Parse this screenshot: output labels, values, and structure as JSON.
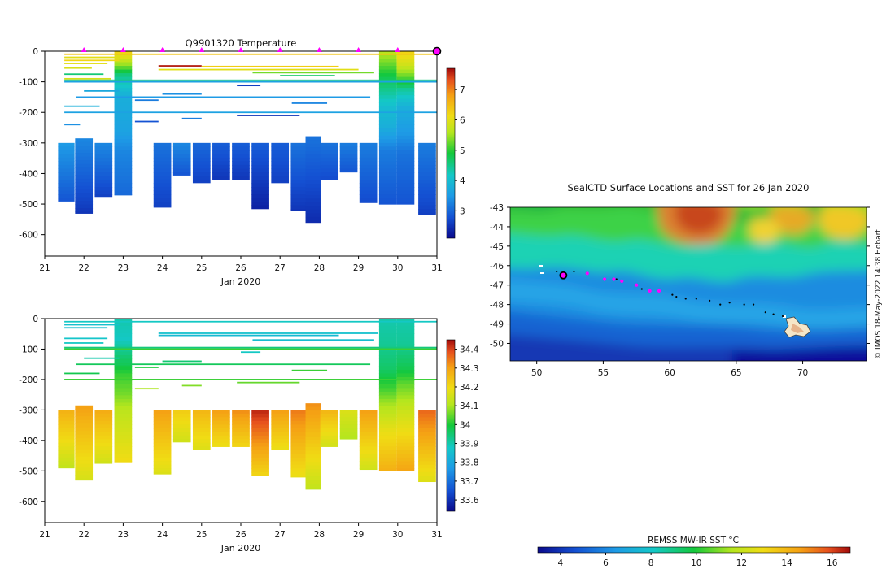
{
  "chart_data": [
    {
      "type": "heatmap",
      "name": "temperature-section",
      "title": "Q9901320  Temperature",
      "xlabel": "Jan 2020",
      "xlim": [
        21,
        31
      ],
      "xticks": [
        21,
        22,
        23,
        24,
        25,
        26,
        27,
        28,
        29,
        30,
        31
      ],
      "ylim": [
        -670,
        0
      ],
      "yticks": [
        0,
        -100,
        -200,
        -300,
        -400,
        -500,
        -600
      ],
      "colorbar": {
        "min": 2.1,
        "max": 7.7,
        "ticks": [
          3,
          4,
          5,
          6,
          7
        ]
      },
      "surface_markers": [
        22,
        23,
        24,
        25,
        26,
        27,
        28,
        29,
        30
      ],
      "last_marker": 31,
      "profiles": [
        {
          "day": 21.55,
          "w": 0.42,
          "top": -300,
          "bottom": -490,
          "lo": 2.8,
          "hi": 3.5
        },
        {
          "day": 22.0,
          "w": 0.45,
          "top": -285,
          "bottom": -530,
          "lo": 2.5,
          "hi": 3.3
        },
        {
          "day": 22.5,
          "w": 0.45,
          "top": -300,
          "bottom": -475,
          "lo": 2.6,
          "hi": 3.3
        },
        {
          "day": 24.0,
          "w": 0.45,
          "top": -300,
          "bottom": -510,
          "lo": 2.6,
          "hi": 3.1
        },
        {
          "day": 24.5,
          "w": 0.45,
          "top": -300,
          "bottom": -405,
          "lo": 2.8,
          "hi": 3.3
        },
        {
          "day": 25.0,
          "w": 0.45,
          "top": -300,
          "bottom": -430,
          "lo": 2.6,
          "hi": 3.0
        },
        {
          "day": 25.5,
          "w": 0.45,
          "top": -300,
          "bottom": -420,
          "lo": 2.5,
          "hi": 2.9
        },
        {
          "day": 26.0,
          "w": 0.45,
          "top": -300,
          "bottom": -420,
          "lo": 2.5,
          "hi": 2.9
        },
        {
          "day": 26.5,
          "w": 0.45,
          "top": -300,
          "bottom": -515,
          "lo": 2.3,
          "hi": 2.9
        },
        {
          "day": 27.0,
          "w": 0.45,
          "top": -300,
          "bottom": -430,
          "lo": 2.6,
          "hi": 2.9
        },
        {
          "day": 27.5,
          "w": 0.45,
          "top": -300,
          "bottom": -520,
          "lo": 2.5,
          "hi": 3.1
        },
        {
          "day": 27.85,
          "w": 0.4,
          "top": -278,
          "bottom": -560,
          "lo": 2.4,
          "hi": 3.1
        },
        {
          "day": 28.25,
          "w": 0.45,
          "top": -300,
          "bottom": -420,
          "lo": 2.7,
          "hi": 3.1
        },
        {
          "day": 28.75,
          "w": 0.45,
          "top": -300,
          "bottom": -395,
          "lo": 2.8,
          "hi": 3.2
        },
        {
          "day": 29.25,
          "w": 0.45,
          "top": -300,
          "bottom": -495,
          "lo": 2.7,
          "hi": 3.2
        },
        {
          "day": 30.75,
          "w": 0.45,
          "top": -300,
          "bottom": -535,
          "lo": 2.6,
          "hi": 3.2
        }
      ],
      "full_columns": [
        {
          "day": 23.0,
          "w": 0.45,
          "bottom": -470,
          "stops": [
            [
              0,
              6.2
            ],
            [
              -40,
              5.4
            ],
            [
              -70,
              4.6
            ],
            [
              -100,
              4.2
            ],
            [
              -140,
              3.8
            ],
            [
              -200,
              3.7
            ],
            [
              -260,
              3.6
            ],
            [
              -320,
              3.3
            ],
            [
              -470,
              3.0
            ]
          ]
        },
        {
          "day": 29.75,
          "w": 0.45,
          "bottom": -500,
          "stops": [
            [
              0,
              5.6
            ],
            [
              -40,
              5.2
            ],
            [
              -80,
              4.8
            ],
            [
              -130,
              4.4
            ],
            [
              -180,
              4.0
            ],
            [
              -240,
              3.8
            ],
            [
              -320,
              3.2
            ],
            [
              -500,
              2.8
            ]
          ]
        },
        {
          "day": 30.2,
          "w": 0.45,
          "bottom": -500,
          "stops": [
            [
              0,
              6.2
            ],
            [
              -40,
              5.8
            ],
            [
              -80,
              5.2
            ],
            [
              -120,
              4.4
            ],
            [
              -180,
              3.8
            ],
            [
              -260,
              3.5
            ],
            [
              -330,
              3.1
            ],
            [
              -500,
              2.8
            ]
          ]
        }
      ],
      "lines": [
        {
          "depth": -10,
          "x0": 21.5,
          "x1": 31.0,
          "v": 6.4
        },
        {
          "depth": -20,
          "x0": 21.5,
          "x1": 22.9,
          "v": 6.0
        },
        {
          "depth": -30,
          "x0": 21.5,
          "x1": 22.9,
          "v": 6.2
        },
        {
          "depth": -40,
          "x0": 21.5,
          "x1": 22.6,
          "v": 6.0
        },
        {
          "depth": -48,
          "x0": 23.9,
          "x1": 25.0,
          "v": 7.6
        },
        {
          "depth": -50,
          "x0": 25.0,
          "x1": 28.5,
          "v": 6.3
        },
        {
          "depth": -55,
          "x0": 21.5,
          "x1": 22.2,
          "v": 5.9
        },
        {
          "depth": -60,
          "x0": 23.9,
          "x1": 29.0,
          "v": 6.0
        },
        {
          "depth": -70,
          "x0": 26.3,
          "x1": 29.4,
          "v": 5.3
        },
        {
          "depth": -75,
          "x0": 21.5,
          "x1": 22.5,
          "v": 4.6
        },
        {
          "depth": -80,
          "x0": 27.0,
          "x1": 28.4,
          "v": 4.7
        },
        {
          "depth": -90,
          "x0": 21.5,
          "x1": 22.7,
          "v": 5.9
        },
        {
          "depth": -95,
          "x0": 21.5,
          "x1": 31.0,
          "v": 4.6
        },
        {
          "depth": -100,
          "x0": 21.5,
          "x1": 31.0,
          "v": 3.6
        },
        {
          "depth": -112,
          "x0": 25.9,
          "x1": 26.5,
          "v": 2.6
        },
        {
          "depth": -130,
          "x0": 22.0,
          "x1": 22.9,
          "v": 3.7
        },
        {
          "depth": -140,
          "x0": 24.0,
          "x1": 25.0,
          "v": 3.4
        },
        {
          "depth": -150,
          "x0": 21.8,
          "x1": 29.3,
          "v": 3.5
        },
        {
          "depth": -160,
          "x0": 23.3,
          "x1": 23.9,
          "v": 3.2
        },
        {
          "depth": -170,
          "x0": 27.3,
          "x1": 28.2,
          "v": 3.3
        },
        {
          "depth": -180,
          "x0": 21.5,
          "x1": 22.4,
          "v": 3.8
        },
        {
          "depth": -200,
          "x0": 21.5,
          "x1": 31.0,
          "v": 3.6
        },
        {
          "depth": -210,
          "x0": 25.9,
          "x1": 27.5,
          "v": 2.5
        },
        {
          "depth": -220,
          "x0": 24.5,
          "x1": 25.0,
          "v": 3.2
        },
        {
          "depth": -230,
          "x0": 23.3,
          "x1": 23.9,
          "v": 2.8
        },
        {
          "depth": -240,
          "x0": 21.5,
          "x1": 21.9,
          "v": 3.4
        }
      ]
    },
    {
      "type": "heatmap",
      "name": "salinity-section",
      "xlabel": "Jan 2020",
      "xlim": [
        21,
        31
      ],
      "xticks": [
        21,
        22,
        23,
        24,
        25,
        26,
        27,
        28,
        29,
        30,
        31
      ],
      "ylim": [
        -670,
        0
      ],
      "yticks": [
        0,
        -100,
        -200,
        -300,
        -400,
        -500,
        -600
      ],
      "colorbar": {
        "min": 33.54,
        "max": 34.45,
        "ticks": [
          33.6,
          33.7,
          33.8,
          33.9,
          34,
          34.1,
          34.2,
          34.3,
          34.4
        ]
      },
      "profiles": [
        {
          "day": 21.55,
          "w": 0.42,
          "top": -300,
          "bottom": -490,
          "lo": 34.12,
          "hi": 34.27
        },
        {
          "day": 22.0,
          "w": 0.45,
          "top": -285,
          "bottom": -530,
          "lo": 34.15,
          "hi": 34.3
        },
        {
          "day": 22.5,
          "w": 0.45,
          "top": -300,
          "bottom": -475,
          "lo": 34.14,
          "hi": 34.28
        },
        {
          "day": 24.0,
          "w": 0.45,
          "top": -300,
          "bottom": -510,
          "lo": 34.16,
          "hi": 34.3
        },
        {
          "day": 24.5,
          "w": 0.45,
          "top": -300,
          "bottom": -405,
          "lo": 34.14,
          "hi": 34.22
        },
        {
          "day": 25.0,
          "w": 0.45,
          "top": -300,
          "bottom": -430,
          "lo": 34.16,
          "hi": 34.26
        },
        {
          "day": 25.5,
          "w": 0.45,
          "top": -300,
          "bottom": -420,
          "lo": 34.18,
          "hi": 34.3
        },
        {
          "day": 26.0,
          "w": 0.45,
          "top": -300,
          "bottom": -420,
          "lo": 34.2,
          "hi": 34.32
        },
        {
          "day": 26.5,
          "w": 0.45,
          "top": -300,
          "bottom": -515,
          "lo": 34.2,
          "hi": 34.42
        },
        {
          "day": 27.0,
          "w": 0.45,
          "top": -300,
          "bottom": -430,
          "lo": 34.18,
          "hi": 34.3
        },
        {
          "day": 27.5,
          "w": 0.45,
          "top": -300,
          "bottom": -520,
          "lo": 34.18,
          "hi": 34.34
        },
        {
          "day": 27.85,
          "w": 0.4,
          "top": -278,
          "bottom": -560,
          "lo": 34.12,
          "hi": 34.32
        },
        {
          "day": 28.25,
          "w": 0.45,
          "top": -300,
          "bottom": -420,
          "lo": 34.14,
          "hi": 34.26
        },
        {
          "day": 28.75,
          "w": 0.45,
          "top": -300,
          "bottom": -395,
          "lo": 34.1,
          "hi": 34.16
        },
        {
          "day": 29.25,
          "w": 0.45,
          "top": -300,
          "bottom": -495,
          "lo": 34.14,
          "hi": 34.3
        },
        {
          "day": 30.75,
          "w": 0.45,
          "top": -300,
          "bottom": -535,
          "lo": 34.16,
          "hi": 34.36
        }
      ],
      "full_columns": [
        {
          "day": 23.0,
          "w": 0.45,
          "bottom": -470,
          "stops": [
            [
              0,
              33.9
            ],
            [
              -60,
              33.88
            ],
            [
              -120,
              33.95
            ],
            [
              -180,
              34.02
            ],
            [
              -240,
              34.06
            ],
            [
              -300,
              34.12
            ],
            [
              -470,
              34.2
            ]
          ]
        },
        {
          "day": 29.75,
          "w": 0.45,
          "bottom": -500,
          "stops": [
            [
              0,
              33.9
            ],
            [
              -80,
              33.92
            ],
            [
              -160,
              33.96
            ],
            [
              -220,
              34.02
            ],
            [
              -280,
              34.1
            ],
            [
              -360,
              34.18
            ],
            [
              -500,
              34.28
            ]
          ]
        },
        {
          "day": 30.2,
          "w": 0.45,
          "bottom": -500,
          "stops": [
            [
              0,
              33.9
            ],
            [
              -80,
              33.92
            ],
            [
              -160,
              33.98
            ],
            [
              -220,
              34.06
            ],
            [
              -300,
              34.14
            ],
            [
              -400,
              34.22
            ],
            [
              -500,
              34.3
            ]
          ]
        }
      ],
      "lines": [
        {
          "depth": -10,
          "x0": 21.5,
          "x1": 31.0,
          "v": 33.88
        },
        {
          "depth": -20,
          "x0": 21.5,
          "x1": 22.9,
          "v": 33.86
        },
        {
          "depth": -30,
          "x0": 21.5,
          "x1": 22.6,
          "v": 33.85
        },
        {
          "depth": -48,
          "x0": 23.9,
          "x1": 29.5,
          "v": 33.86
        },
        {
          "depth": -55,
          "x0": 23.9,
          "x1": 28.5,
          "v": 33.84
        },
        {
          "depth": -65,
          "x0": 21.5,
          "x1": 22.6,
          "v": 33.87
        },
        {
          "depth": -70,
          "x0": 26.3,
          "x1": 29.4,
          "v": 33.85
        },
        {
          "depth": -80,
          "x0": 21.5,
          "x1": 22.5,
          "v": 33.88
        },
        {
          "depth": -95,
          "x0": 21.5,
          "x1": 31.0,
          "v": 33.94
        },
        {
          "depth": -100,
          "x0": 21.5,
          "x1": 31.0,
          "v": 34.02
        },
        {
          "depth": -110,
          "x0": 26.0,
          "x1": 26.5,
          "v": 33.88
        },
        {
          "depth": -130,
          "x0": 22.0,
          "x1": 22.9,
          "v": 33.9
        },
        {
          "depth": -140,
          "x0": 24.0,
          "x1": 25.0,
          "v": 33.95
        },
        {
          "depth": -150,
          "x0": 21.8,
          "x1": 29.3,
          "v": 33.97
        },
        {
          "depth": -160,
          "x0": 23.3,
          "x1": 23.9,
          "v": 34.0
        },
        {
          "depth": -170,
          "x0": 27.3,
          "x1": 28.2,
          "v": 34.02
        },
        {
          "depth": -180,
          "x0": 21.5,
          "x1": 22.4,
          "v": 33.98
        },
        {
          "depth": -200,
          "x0": 21.5,
          "x1": 31.0,
          "v": 34.02
        },
        {
          "depth": -210,
          "x0": 25.9,
          "x1": 27.5,
          "v": 34.05
        },
        {
          "depth": -220,
          "x0": 24.5,
          "x1": 25.0,
          "v": 34.07
        },
        {
          "depth": -230,
          "x0": 23.3,
          "x1": 23.9,
          "v": 34.1
        }
      ]
    },
    {
      "type": "heatmap",
      "name": "sst-map",
      "title": "SealCTD Surface Locations and SST for 26 Jan 2020",
      "xlim": [
        48,
        74.8
      ],
      "ylim": [
        -50.9,
        -43
      ],
      "xticks": [
        50,
        55,
        60,
        65,
        70
      ],
      "yticks": [
        -43,
        -44,
        -45,
        -46,
        -47,
        -48,
        -49,
        -50
      ],
      "colorbar": {
        "label": "REMSS MW-IR SST °C",
        "min": 3,
        "max": 16.8,
        "ticks": [
          4,
          6,
          8,
          10,
          12,
          14,
          16
        ]
      },
      "side_note": "© IMOS 18-May-2022 14:38 Hobart",
      "current_location": {
        "lon": 52.0,
        "lat": -46.5
      },
      "recent_locations": [
        {
          "lon": 53.8,
          "lat": -46.4
        },
        {
          "lon": 55.1,
          "lat": -46.7
        },
        {
          "lon": 55.8,
          "lat": -46.7
        },
        {
          "lon": 56.4,
          "lat": -46.8
        },
        {
          "lon": 57.5,
          "lat": -47.0
        },
        {
          "lon": 58.5,
          "lat": -47.3
        },
        {
          "lon": 59.2,
          "lat": -47.3
        }
      ],
      "track_locations": [
        {
          "lon": 51.5,
          "lat": -46.3
        },
        {
          "lon": 52.8,
          "lat": -46.3
        },
        {
          "lon": 56.0,
          "lat": -46.7
        },
        {
          "lon": 57.9,
          "lat": -47.2
        },
        {
          "lon": 60.5,
          "lat": -47.6
        },
        {
          "lon": 61.2,
          "lat": -47.7
        },
        {
          "lon": 62.0,
          "lat": -47.7
        },
        {
          "lon": 63.0,
          "lat": -47.8
        },
        {
          "lon": 63.8,
          "lat": -48.0
        },
        {
          "lon": 64.5,
          "lat": -47.9
        },
        {
          "lon": 65.6,
          "lat": -48.0
        },
        {
          "lon": 66.3,
          "lat": -48.0
        },
        {
          "lon": 67.2,
          "lat": -48.4
        },
        {
          "lon": 67.8,
          "lat": -48.5
        },
        {
          "lon": 68.5,
          "lat": -48.6
        },
        {
          "lon": 60.2,
          "lat": -47.5
        }
      ]
    }
  ]
}
